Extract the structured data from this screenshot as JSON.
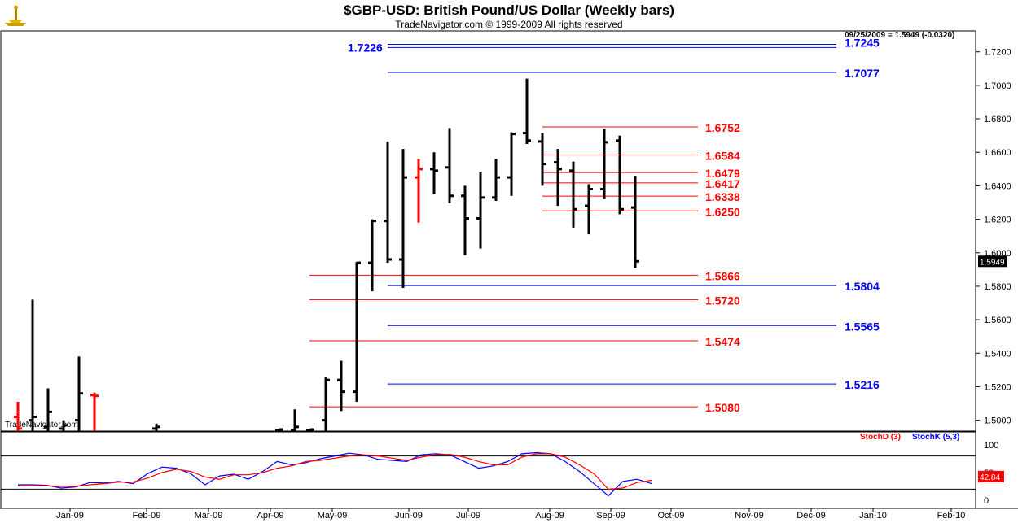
{
  "header": {
    "title": "$GBP-USD:  British Pound/US Dollar  (Weekly bars)",
    "subtitle": "TradeNavigator.com © 1999-2009 All rights reserved",
    "last_info": "09/25/2009 = 1.5949 (-0.0320)",
    "watermark": "TradeNavigator.com",
    "last_price_tag": "1.5949"
  },
  "stoch": {
    "d_label": "StochD (3)",
    "k_label": "StochK (5,3)",
    "d_color": "#ff0000",
    "k_color": "#0000ff",
    "last_value_label": "42.84",
    "axis_ticks": [
      "100",
      "50",
      "0"
    ]
  },
  "colors": {
    "resistance_line": "#ff0000",
    "support_line": "#0000ff",
    "bar_up": "#000000",
    "bar_highlight": "#ff0000"
  },
  "chart_data": {
    "type": "ohlc",
    "y_axis_ticks": [
      "1.7200",
      "1.7000",
      "1.6800",
      "1.6600",
      "1.6400",
      "1.6200",
      "1.6000",
      "1.5800",
      "1.5600",
      "1.5400",
      "1.5200",
      "1.5000"
    ],
    "ylim": [
      1.4935,
      1.7325
    ],
    "x_axis_labels": [
      "Jan-09",
      "Feb-09",
      "Mar-09",
      "Apr-09",
      "May-09",
      "Jun-09",
      "Jul-09",
      "Aug-09",
      "Sep-09",
      "Oct-09",
      "Nov-09",
      "Dec-09",
      "Jan-10",
      "Feb-10"
    ],
    "bars": [
      {
        "x": "Dec-09-w1",
        "o": 1.502,
        "h": 1.511,
        "l": 1.4935,
        "c": 1.495,
        "color": "red"
      },
      {
        "x": "Dec-08-w2",
        "o": 1.5,
        "h": 1.572,
        "l": 1.4935,
        "c": 1.502,
        "color": "black"
      },
      {
        "x": "Dec-08-w3",
        "o": 1.496,
        "h": 1.519,
        "l": 1.4935,
        "c": 1.505,
        "color": "black"
      },
      {
        "x": "Jan-09-w2",
        "o": 1.495,
        "h": 1.5,
        "l": 1.4935,
        "c": 1.497,
        "color": "black"
      },
      {
        "x": "Jan-09-w4",
        "o": 1.5,
        "h": 1.538,
        "l": 1.4935,
        "c": 1.516,
        "color": "black"
      },
      {
        "x": "Feb-09-w1",
        "o": 1.515,
        "h": 1.5165,
        "l": 1.4935,
        "c": 1.5145,
        "color": "red"
      },
      {
        "x": "Feb-09-w4",
        "o": 1.495,
        "h": 1.498,
        "l": 1.4935,
        "c": 1.496,
        "color": "black"
      },
      {
        "x": "Apr-09-w2",
        "o": 1.494,
        "h": 1.495,
        "l": 1.4935,
        "c": 1.4945,
        "color": "black"
      },
      {
        "x": "Apr-09-w4",
        "o": 1.494,
        "h": 1.5065,
        "l": 1.4935,
        "c": 1.496,
        "color": "black"
      },
      {
        "x": "May-09-w1",
        "o": 1.494,
        "h": 1.495,
        "l": 1.4935,
        "c": 1.4945,
        "color": "black"
      },
      {
        "x": "May-09-w2",
        "o": 1.5,
        "h": 1.5255,
        "l": 1.4935,
        "c": 1.524,
        "color": "black"
      },
      {
        "x": "May-09-w3",
        "o": 1.524,
        "h": 1.5355,
        "l": 1.5055,
        "c": 1.517,
        "color": "black"
      },
      {
        "x": "May-09-w4",
        "o": 1.517,
        "h": 1.5945,
        "l": 1.511,
        "c": 1.594,
        "color": "black"
      },
      {
        "x": "Jun-09-w1",
        "o": 1.594,
        "h": 1.62,
        "l": 1.577,
        "c": 1.619,
        "color": "black"
      },
      {
        "x": "Jun-09-w2",
        "o": 1.619,
        "h": 1.6665,
        "l": 1.594,
        "c": 1.596,
        "color": "black"
      },
      {
        "x": "Jun-09-w3",
        "o": 1.596,
        "h": 1.662,
        "l": 1.579,
        "c": 1.645,
        "color": "black"
      },
      {
        "x": "Jun-09-w4",
        "o": 1.645,
        "h": 1.656,
        "l": 1.618,
        "c": 1.65,
        "color": "red"
      },
      {
        "x": "Jul-09-w1",
        "o": 1.65,
        "h": 1.66,
        "l": 1.635,
        "c": 1.649,
        "color": "black"
      },
      {
        "x": "Jul-09-w2",
        "o": 1.651,
        "h": 1.6745,
        "l": 1.6295,
        "c": 1.634,
        "color": "black"
      },
      {
        "x": "Jul-09-w3",
        "o": 1.634,
        "h": 1.64,
        "l": 1.5985,
        "c": 1.6205,
        "color": "black"
      },
      {
        "x": "Jul-09-w4",
        "o": 1.6205,
        "h": 1.648,
        "l": 1.6025,
        "c": 1.633,
        "color": "black"
      },
      {
        "x": "Aug-09-w1",
        "o": 1.633,
        "h": 1.656,
        "l": 1.631,
        "c": 1.645,
        "color": "black"
      },
      {
        "x": "Aug-09-w2",
        "o": 1.645,
        "h": 1.672,
        "l": 1.634,
        "c": 1.671,
        "color": "black"
      },
      {
        "x": "Aug-09-w3",
        "o": 1.6715,
        "h": 1.704,
        "l": 1.665,
        "c": 1.667,
        "color": "black"
      },
      {
        "x": "Aug-09-w4",
        "o": 1.6665,
        "h": 1.6715,
        "l": 1.64,
        "c": 1.653,
        "color": "black"
      },
      {
        "x": "Sep-09-w1",
        "o": 1.654,
        "h": 1.662,
        "l": 1.628,
        "c": 1.65,
        "color": "black"
      },
      {
        "x": "Sep-09-w2",
        "o": 1.649,
        "h": 1.6545,
        "l": 1.615,
        "c": 1.626,
        "color": "black"
      },
      {
        "x": "Sep-09-w3",
        "o": 1.628,
        "h": 1.641,
        "l": 1.611,
        "c": 1.638,
        "color": "black"
      },
      {
        "x": "Sep-09-w4",
        "o": 1.638,
        "h": 1.674,
        "l": 1.632,
        "c": 1.666,
        "color": "black"
      },
      {
        "x": "Sep-09-w5",
        "o": 1.667,
        "h": 1.67,
        "l": 1.623,
        "c": 1.626,
        "color": "black"
      },
      {
        "x": "Sep-25-09",
        "o": 1.627,
        "h": 1.646,
        "l": 1.591,
        "c": 1.5949,
        "color": "black"
      }
    ],
    "level_lines": [
      {
        "label": "1.7226",
        "value": 1.7226,
        "color": "blue",
        "side": "left"
      },
      {
        "label": "1.7245",
        "value": 1.7245,
        "color": "blue",
        "side": "right"
      },
      {
        "label": "1.7077",
        "value": 1.7077,
        "color": "blue",
        "side": "right"
      },
      {
        "label": "1.6752",
        "value": 1.6752,
        "color": "red",
        "side": "mid"
      },
      {
        "label": "1.6584",
        "value": 1.6584,
        "color": "red",
        "side": "mid"
      },
      {
        "label": "1.6479",
        "value": 1.6479,
        "color": "red",
        "side": "mid"
      },
      {
        "label": "1.6417",
        "value": 1.6417,
        "color": "red",
        "side": "mid"
      },
      {
        "label": "1.6338",
        "value": 1.6338,
        "color": "red",
        "side": "mid"
      },
      {
        "label": "1.6250",
        "value": 1.625,
        "color": "red",
        "side": "mid"
      },
      {
        "label": "1.5866",
        "value": 1.5866,
        "color": "red",
        "side": "mid"
      },
      {
        "label": "1.5804",
        "value": 1.5804,
        "color": "blue",
        "side": "right"
      },
      {
        "label": "1.5720",
        "value": 1.572,
        "color": "red",
        "side": "mid"
      },
      {
        "label": "1.5565",
        "value": 1.5565,
        "color": "blue",
        "side": "right"
      },
      {
        "label": "1.5474",
        "value": 1.5474,
        "color": "red",
        "side": "mid"
      },
      {
        "label": "1.5216",
        "value": 1.5216,
        "color": "blue",
        "side": "right"
      },
      {
        "label": "1.5080",
        "value": 1.508,
        "color": "red",
        "side": "mid"
      }
    ],
    "stoch_series": [
      {
        "name": "StochK (5,3)",
        "values": [
          28,
          28,
          27,
          22,
          24,
          32,
          31,
          34,
          30,
          48,
          60,
          58,
          48,
          28,
          44,
          47,
          38,
          52,
          70,
          64,
          68,
          75,
          80,
          85,
          82,
          74,
          72,
          70,
          82,
          84,
          82,
          70,
          58,
          62,
          70,
          84,
          86,
          84,
          70,
          52,
          30,
          8,
          34,
          38,
          30
        ]
      },
      {
        "name": "StochD (3)",
        "values": [
          26,
          26,
          26,
          25,
          25,
          28,
          30,
          33,
          33,
          40,
          50,
          56,
          52,
          42,
          38,
          46,
          46,
          50,
          58,
          62,
          70,
          72,
          76,
          80,
          82,
          80,
          76,
          72,
          78,
          82,
          83,
          78,
          70,
          64,
          64,
          78,
          84,
          84,
          78,
          64,
          48,
          20,
          22,
          32,
          36
        ]
      }
    ]
  }
}
